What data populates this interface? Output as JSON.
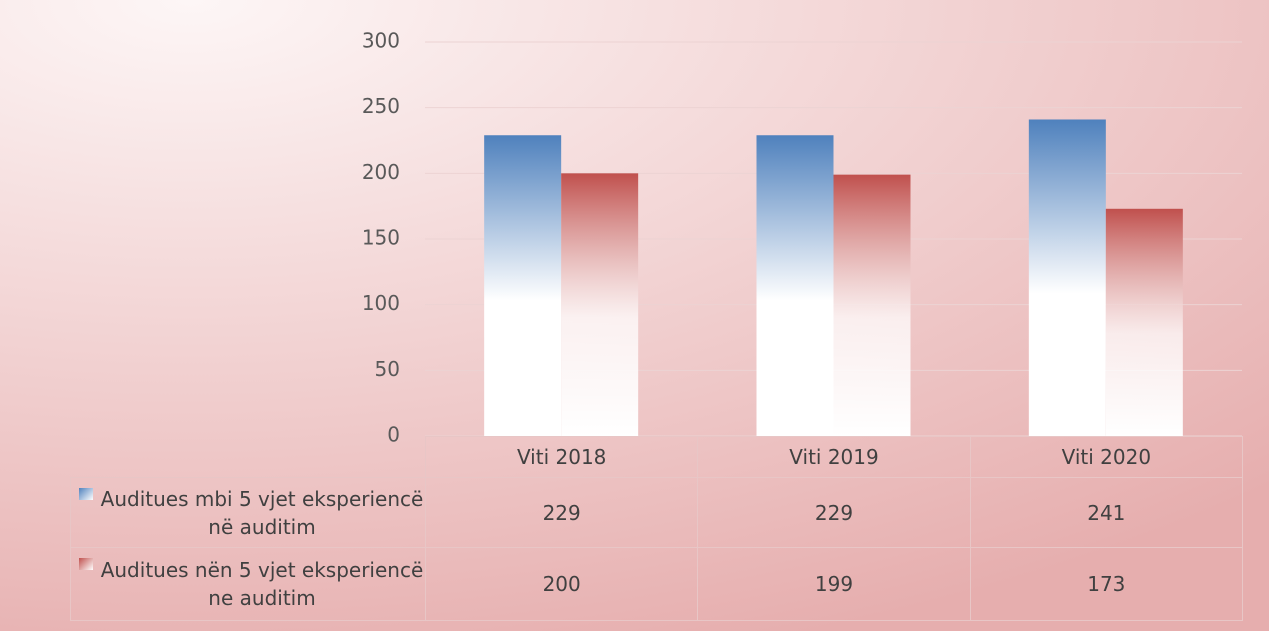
{
  "chart_data": {
    "type": "bar",
    "categories": [
      "Viti 2018",
      "Viti 2019",
      "Viti 2020"
    ],
    "series": [
      {
        "name": "Auditues mbi 5 vjet eksperiencë në auditim",
        "color": "#4f81bd",
        "values": [
          229,
          229,
          241
        ]
      },
      {
        "name": "Auditues nën 5 vjet eksperiencë ne auditim",
        "color": "#c0504d",
        "values": [
          200,
          199,
          173
        ]
      }
    ],
    "ylim": [
      0,
      300
    ],
    "yticks": [
      0,
      50,
      100,
      150,
      200,
      250,
      300
    ],
    "grid": true
  }
}
